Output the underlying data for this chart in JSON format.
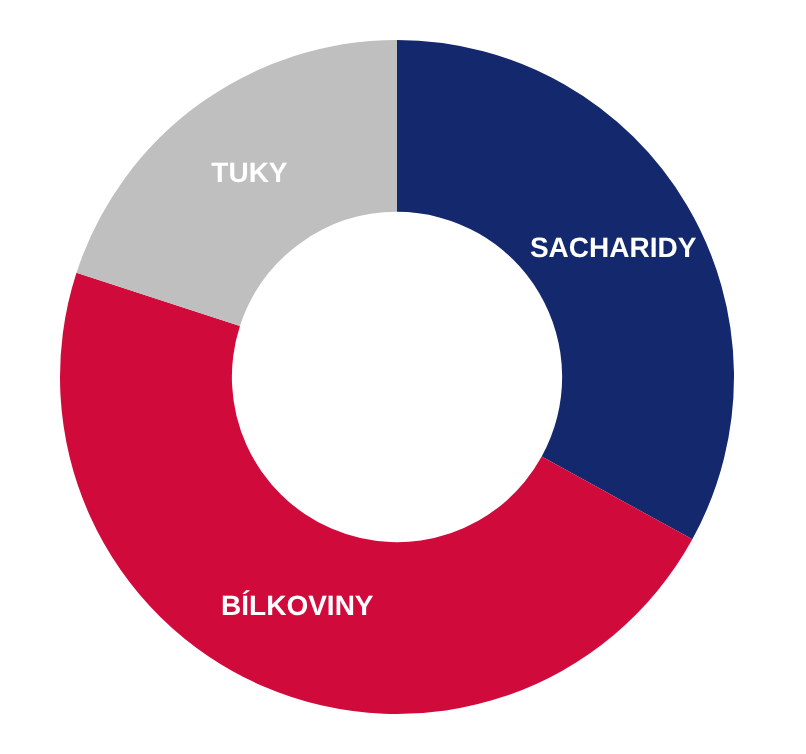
{
  "chart_data": {
    "type": "donut",
    "categories": [
      "SACHARIDY",
      "BÍLKOVINY",
      "TUKY"
    ],
    "values": [
      33,
      47,
      20
    ],
    "colors": [
      "#14286e",
      "#d10a3c",
      "#bfbfbf"
    ],
    "legend": false
  }
}
